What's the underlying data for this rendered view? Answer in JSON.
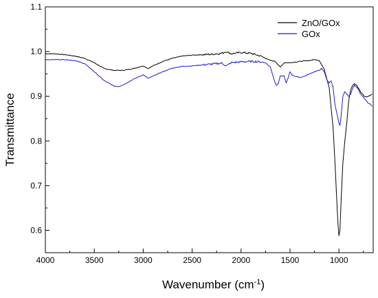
{
  "chart_data": {
    "type": "line",
    "title": "",
    "xlabel": "Wavenumber (cm",
    "xlabel_sup": "-1",
    "xlabel_close": ")",
    "ylabel": "Transmittance",
    "xlim": [
      4000,
      650
    ],
    "ylim": [
      0.55,
      1.1
    ],
    "x_reversed": true,
    "grid": false,
    "legend_position": "top-right",
    "x_ticks": [
      4000,
      3500,
      3000,
      2500,
      2000,
      1500,
      1000
    ],
    "x_tick_labels": [
      "4000",
      "3500",
      "3000",
      "2500",
      "2000",
      "1500",
      "1000"
    ],
    "y_ticks": [
      0.6,
      0.7,
      0.8,
      0.9,
      1.0,
      1.1
    ],
    "y_tick_labels": [
      "0.6",
      "0.7",
      "0.8",
      "0.9",
      "1.0",
      "1.1"
    ],
    "series": [
      {
        "name": "ZnO/GOx",
        "color": "#000000",
        "points": [
          [
            4000,
            0.995
          ],
          [
            3900,
            0.995
          ],
          [
            3800,
            0.993
          ],
          [
            3700,
            0.99
          ],
          [
            3600,
            0.985
          ],
          [
            3500,
            0.975
          ],
          [
            3400,
            0.962
          ],
          [
            3300,
            0.958
          ],
          [
            3200,
            0.958
          ],
          [
            3100,
            0.962
          ],
          [
            3000,
            0.968
          ],
          [
            2950,
            0.962
          ],
          [
            2900,
            0.968
          ],
          [
            2800,
            0.978
          ],
          [
            2700,
            0.985
          ],
          [
            2600,
            0.99
          ],
          [
            2500,
            0.992
          ],
          [
            2400,
            0.993
          ],
          [
            2300,
            0.994
          ],
          [
            2200,
            0.996
          ],
          [
            2150,
            1.0
          ],
          [
            2100,
            0.995
          ],
          [
            2000,
            0.998
          ],
          [
            1900,
            0.996
          ],
          [
            1800,
            0.99
          ],
          [
            1750,
            0.985
          ],
          [
            1700,
            0.98
          ],
          [
            1650,
            0.978
          ],
          [
            1600,
            0.965
          ],
          [
            1560,
            0.975
          ],
          [
            1500,
            0.975
          ],
          [
            1400,
            0.978
          ],
          [
            1300,
            0.98
          ],
          [
            1250,
            0.982
          ],
          [
            1200,
            0.98
          ],
          [
            1150,
            0.96
          ],
          [
            1100,
            0.92
          ],
          [
            1060,
            0.83
          ],
          [
            1040,
            0.75
          ],
          [
            1025,
            0.68
          ],
          [
            1010,
            0.615
          ],
          [
            1000,
            0.588
          ],
          [
            990,
            0.6
          ],
          [
            975,
            0.68
          ],
          [
            960,
            0.75
          ],
          [
            940,
            0.8
          ],
          [
            920,
            0.84
          ],
          [
            900,
            0.89
          ],
          [
            880,
            0.915
          ],
          [
            860,
            0.925
          ],
          [
            840,
            0.928
          ],
          [
            820,
            0.925
          ],
          [
            800,
            0.918
          ],
          [
            780,
            0.91
          ],
          [
            760,
            0.905
          ],
          [
            740,
            0.9
          ],
          [
            720,
            0.898
          ],
          [
            700,
            0.9
          ],
          [
            680,
            0.902
          ],
          [
            660,
            0.905
          ]
        ]
      },
      {
        "name": "GOx",
        "color": "#1a1ad6",
        "points": [
          [
            4000,
            0.982
          ],
          [
            3900,
            0.982
          ],
          [
            3800,
            0.982
          ],
          [
            3700,
            0.98
          ],
          [
            3600,
            0.973
          ],
          [
            3500,
            0.955
          ],
          [
            3400,
            0.935
          ],
          [
            3300,
            0.923
          ],
          [
            3250,
            0.922
          ],
          [
            3200,
            0.926
          ],
          [
            3100,
            0.938
          ],
          [
            3000,
            0.948
          ],
          [
            2950,
            0.94
          ],
          [
            2900,
            0.945
          ],
          [
            2800,
            0.955
          ],
          [
            2700,
            0.963
          ],
          [
            2600,
            0.967
          ],
          [
            2500,
            0.968
          ],
          [
            2400,
            0.97
          ],
          [
            2300,
            0.972
          ],
          [
            2200,
            0.974
          ],
          [
            2150,
            0.968
          ],
          [
            2100,
            0.975
          ],
          [
            2000,
            0.977
          ],
          [
            1900,
            0.978
          ],
          [
            1800,
            0.977
          ],
          [
            1750,
            0.975
          ],
          [
            1700,
            0.965
          ],
          [
            1660,
            0.935
          ],
          [
            1640,
            0.925
          ],
          [
            1620,
            0.928
          ],
          [
            1600,
            0.945
          ],
          [
            1560,
            0.945
          ],
          [
            1540,
            0.93
          ],
          [
            1520,
            0.94
          ],
          [
            1500,
            0.955
          ],
          [
            1480,
            0.948
          ],
          [
            1450,
            0.945
          ],
          [
            1400,
            0.942
          ],
          [
            1350,
            0.945
          ],
          [
            1300,
            0.95
          ],
          [
            1250,
            0.955
          ],
          [
            1200,
            0.958
          ],
          [
            1180,
            0.962
          ],
          [
            1150,
            0.955
          ],
          [
            1120,
            0.935
          ],
          [
            1100,
            0.93
          ],
          [
            1080,
            0.935
          ],
          [
            1060,
            0.92
          ],
          [
            1040,
            0.88
          ],
          [
            1020,
            0.86
          ],
          [
            1000,
            0.84
          ],
          [
            990,
            0.835
          ],
          [
            980,
            0.85
          ],
          [
            960,
            0.9
          ],
          [
            940,
            0.91
          ],
          [
            920,
            0.905
          ],
          [
            900,
            0.9
          ],
          [
            880,
            0.905
          ],
          [
            860,
            0.918
          ],
          [
            840,
            0.925
          ],
          [
            820,
            0.92
          ],
          [
            800,
            0.915
          ],
          [
            780,
            0.905
          ],
          [
            760,
            0.9
          ],
          [
            740,
            0.895
          ],
          [
            720,
            0.89
          ],
          [
            700,
            0.885
          ],
          [
            680,
            0.882
          ],
          [
            660,
            0.878
          ]
        ]
      }
    ]
  }
}
